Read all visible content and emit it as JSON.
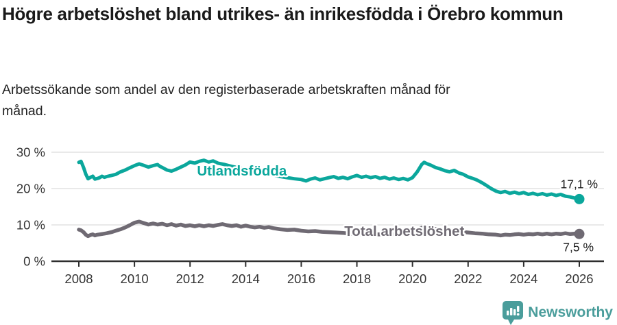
{
  "title": "Högre arbetslöshet bland utrikes- än inrikesfödda i Örebro kommun",
  "subtitle": "Arbetssökande som andel av den registerbaserade arbetskraften månad för månad.",
  "footer": {
    "brand": "Newsworthy",
    "logo_icon": "bar-chart-pin-icon",
    "brand_color": "#4a9d9b"
  },
  "colors": {
    "series_foreign": "#0ba79c",
    "series_total": "#6f6a73",
    "grid": "#dcdcdc",
    "axis": "#2e2e2e",
    "tick_label": "#333333",
    "value_label": "#1a1a1a"
  },
  "chart_data": {
    "type": "line",
    "title": "Högre arbetslöshet bland utrikes- än inrikesfödda i Örebro kommun",
    "xlabel": "",
    "ylabel": "",
    "xlim": [
      2007.0,
      2027.0
    ],
    "ylim": [
      0,
      33
    ],
    "grid": "horizontal",
    "legend": "inline-labels",
    "y_ticks": [
      0,
      10,
      20,
      30
    ],
    "y_tick_labels": [
      "0 %",
      "10 %",
      "20 %",
      "30 %"
    ],
    "x_ticks": [
      2008,
      2010,
      2012,
      2014,
      2016,
      2018,
      2020,
      2022,
      2024,
      2026
    ],
    "x_tick_labels": [
      "2008",
      "2010",
      "2012",
      "2014",
      "2016",
      "2018",
      "2020",
      "2022",
      "2024",
      "2026"
    ],
    "series": [
      {
        "name": "Utlandsfödda",
        "color": "#0ba79c",
        "stroke_width": 5,
        "end_label": "17,1 %",
        "end_label_offset": [
          27,
          -16
        ],
        "name_label_pos": [
          2012.25,
          23.6
        ],
        "points": [
          [
            2008.0,
            27.2
          ],
          [
            2008.08,
            27.5
          ],
          [
            2008.17,
            25.8
          ],
          [
            2008.25,
            24.0
          ],
          [
            2008.33,
            22.7
          ],
          [
            2008.42,
            23.1
          ],
          [
            2008.5,
            23.4
          ],
          [
            2008.58,
            22.6
          ],
          [
            2008.67,
            22.8
          ],
          [
            2008.75,
            23.0
          ],
          [
            2008.83,
            23.4
          ],
          [
            2008.92,
            23.1
          ],
          [
            2009.0,
            23.3
          ],
          [
            2009.17,
            23.6
          ],
          [
            2009.33,
            23.9
          ],
          [
            2009.5,
            24.6
          ],
          [
            2009.67,
            25.1
          ],
          [
            2009.83,
            25.7
          ],
          [
            2010.0,
            26.3
          ],
          [
            2010.17,
            26.8
          ],
          [
            2010.33,
            26.4
          ],
          [
            2010.5,
            25.9
          ],
          [
            2010.67,
            26.3
          ],
          [
            2010.83,
            26.6
          ],
          [
            2010.92,
            26.1
          ],
          [
            2011.0,
            25.8
          ],
          [
            2011.17,
            25.1
          ],
          [
            2011.33,
            24.8
          ],
          [
            2011.5,
            25.3
          ],
          [
            2011.67,
            25.9
          ],
          [
            2011.83,
            26.5
          ],
          [
            2012.0,
            27.3
          ],
          [
            2012.17,
            27.0
          ],
          [
            2012.33,
            27.5
          ],
          [
            2012.5,
            27.8
          ],
          [
            2012.67,
            27.3
          ],
          [
            2012.83,
            27.6
          ],
          [
            2013.0,
            27.0
          ],
          [
            2013.25,
            26.6
          ],
          [
            2013.5,
            26.1
          ],
          [
            2013.75,
            25.7
          ],
          [
            2014.0,
            25.3
          ],
          [
            2014.25,
            24.9
          ],
          [
            2014.5,
            24.5
          ],
          [
            2014.75,
            24.1
          ],
          [
            2015.0,
            23.7
          ],
          [
            2015.25,
            23.3
          ],
          [
            2015.5,
            23.0
          ],
          [
            2015.75,
            22.7
          ],
          [
            2016.0,
            22.5
          ],
          [
            2016.17,
            22.1
          ],
          [
            2016.33,
            22.6
          ],
          [
            2016.5,
            22.9
          ],
          [
            2016.67,
            22.4
          ],
          [
            2016.83,
            22.7
          ],
          [
            2017.0,
            23.0
          ],
          [
            2017.17,
            23.3
          ],
          [
            2017.33,
            22.8
          ],
          [
            2017.5,
            23.1
          ],
          [
            2017.67,
            22.7
          ],
          [
            2017.83,
            23.2
          ],
          [
            2018.0,
            23.6
          ],
          [
            2018.17,
            23.1
          ],
          [
            2018.33,
            23.4
          ],
          [
            2018.5,
            23.0
          ],
          [
            2018.67,
            23.3
          ],
          [
            2018.83,
            22.8
          ],
          [
            2019.0,
            23.1
          ],
          [
            2019.17,
            22.6
          ],
          [
            2019.33,
            22.9
          ],
          [
            2019.5,
            22.5
          ],
          [
            2019.67,
            22.8
          ],
          [
            2019.83,
            22.4
          ],
          [
            2020.0,
            23.0
          ],
          [
            2020.17,
            24.6
          ],
          [
            2020.33,
            26.6
          ],
          [
            2020.42,
            27.2
          ],
          [
            2020.5,
            26.9
          ],
          [
            2020.67,
            26.4
          ],
          [
            2020.83,
            25.8
          ],
          [
            2021.0,
            25.4
          ],
          [
            2021.17,
            24.9
          ],
          [
            2021.33,
            24.6
          ],
          [
            2021.5,
            25.0
          ],
          [
            2021.67,
            24.3
          ],
          [
            2021.83,
            23.9
          ],
          [
            2022.0,
            23.2
          ],
          [
            2022.17,
            22.8
          ],
          [
            2022.33,
            22.3
          ],
          [
            2022.5,
            21.6
          ],
          [
            2022.67,
            20.8
          ],
          [
            2022.83,
            20.0
          ],
          [
            2023.0,
            19.3
          ],
          [
            2023.17,
            18.9
          ],
          [
            2023.33,
            19.2
          ],
          [
            2023.5,
            18.7
          ],
          [
            2023.67,
            19.0
          ],
          [
            2023.83,
            18.6
          ],
          [
            2024.0,
            18.9
          ],
          [
            2024.17,
            18.4
          ],
          [
            2024.33,
            18.7
          ],
          [
            2024.5,
            18.3
          ],
          [
            2024.67,
            18.6
          ],
          [
            2024.83,
            18.2
          ],
          [
            2025.0,
            18.5
          ],
          [
            2025.17,
            18.1
          ],
          [
            2025.33,
            18.4
          ],
          [
            2025.5,
            17.9
          ],
          [
            2025.67,
            17.7
          ],
          [
            2025.83,
            17.4
          ],
          [
            2026.0,
            17.1
          ]
        ]
      },
      {
        "name": "Total arbetslöshet",
        "color": "#6f6a73",
        "stroke_width": 5.5,
        "end_label": "7,5 %",
        "end_label_offset": [
          21,
          25
        ],
        "name_label_pos": [
          2017.55,
          7.0
        ],
        "points": [
          [
            2008.0,
            8.7
          ],
          [
            2008.08,
            8.5
          ],
          [
            2008.17,
            8.0
          ],
          [
            2008.25,
            7.3
          ],
          [
            2008.33,
            6.9
          ],
          [
            2008.42,
            7.2
          ],
          [
            2008.5,
            7.4
          ],
          [
            2008.58,
            7.1
          ],
          [
            2008.67,
            7.3
          ],
          [
            2008.83,
            7.5
          ],
          [
            2009.0,
            7.7
          ],
          [
            2009.17,
            8.0
          ],
          [
            2009.33,
            8.4
          ],
          [
            2009.5,
            8.8
          ],
          [
            2009.67,
            9.3
          ],
          [
            2009.83,
            9.9
          ],
          [
            2010.0,
            10.6
          ],
          [
            2010.17,
            10.9
          ],
          [
            2010.33,
            10.5
          ],
          [
            2010.5,
            10.1
          ],
          [
            2010.67,
            10.4
          ],
          [
            2010.83,
            10.1
          ],
          [
            2011.0,
            10.3
          ],
          [
            2011.17,
            9.9
          ],
          [
            2011.33,
            10.2
          ],
          [
            2011.5,
            9.8
          ],
          [
            2011.67,
            10.1
          ],
          [
            2011.83,
            9.7
          ],
          [
            2012.0,
            9.9
          ],
          [
            2012.17,
            9.6
          ],
          [
            2012.33,
            9.9
          ],
          [
            2012.5,
            9.6
          ],
          [
            2012.67,
            9.9
          ],
          [
            2012.83,
            9.7
          ],
          [
            2013.0,
            10.0
          ],
          [
            2013.17,
            10.2
          ],
          [
            2013.33,
            9.9
          ],
          [
            2013.5,
            9.7
          ],
          [
            2013.67,
            9.9
          ],
          [
            2013.83,
            9.5
          ],
          [
            2014.0,
            9.8
          ],
          [
            2014.17,
            9.5
          ],
          [
            2014.33,
            9.3
          ],
          [
            2014.5,
            9.5
          ],
          [
            2014.67,
            9.2
          ],
          [
            2014.83,
            9.4
          ],
          [
            2015.0,
            9.1
          ],
          [
            2015.25,
            8.8
          ],
          [
            2015.5,
            8.6
          ],
          [
            2015.75,
            8.7
          ],
          [
            2016.0,
            8.4
          ],
          [
            2016.25,
            8.2
          ],
          [
            2016.5,
            8.3
          ],
          [
            2016.75,
            8.1
          ],
          [
            2017.0,
            8.0
          ],
          [
            2017.25,
            7.9
          ],
          [
            2017.5,
            7.8
          ],
          [
            2017.75,
            7.6
          ],
          [
            2018.0,
            7.5
          ],
          [
            2018.25,
            7.4
          ],
          [
            2018.5,
            7.3
          ],
          [
            2018.75,
            7.4
          ],
          [
            2019.0,
            7.3
          ],
          [
            2019.25,
            7.4
          ],
          [
            2019.5,
            7.5
          ],
          [
            2019.75,
            7.7
          ],
          [
            2020.0,
            8.0
          ],
          [
            2020.17,
            8.7
          ],
          [
            2020.33,
            9.2
          ],
          [
            2020.5,
            9.3
          ],
          [
            2020.67,
            9.1
          ],
          [
            2020.83,
            8.9
          ],
          [
            2021.0,
            8.8
          ],
          [
            2021.25,
            8.5
          ],
          [
            2021.5,
            8.3
          ],
          [
            2021.75,
            8.1
          ],
          [
            2022.0,
            7.9
          ],
          [
            2022.25,
            7.7
          ],
          [
            2022.5,
            7.6
          ],
          [
            2022.75,
            7.4
          ],
          [
            2023.0,
            7.3
          ],
          [
            2023.17,
            7.1
          ],
          [
            2023.33,
            7.3
          ],
          [
            2023.5,
            7.2
          ],
          [
            2023.67,
            7.4
          ],
          [
            2023.83,
            7.5
          ],
          [
            2024.0,
            7.3
          ],
          [
            2024.17,
            7.5
          ],
          [
            2024.33,
            7.4
          ],
          [
            2024.5,
            7.6
          ],
          [
            2024.67,
            7.4
          ],
          [
            2024.83,
            7.6
          ],
          [
            2025.0,
            7.4
          ],
          [
            2025.17,
            7.6
          ],
          [
            2025.33,
            7.5
          ],
          [
            2025.5,
            7.7
          ],
          [
            2025.67,
            7.5
          ],
          [
            2025.83,
            7.6
          ],
          [
            2026.0,
            7.5
          ]
        ]
      }
    ]
  }
}
